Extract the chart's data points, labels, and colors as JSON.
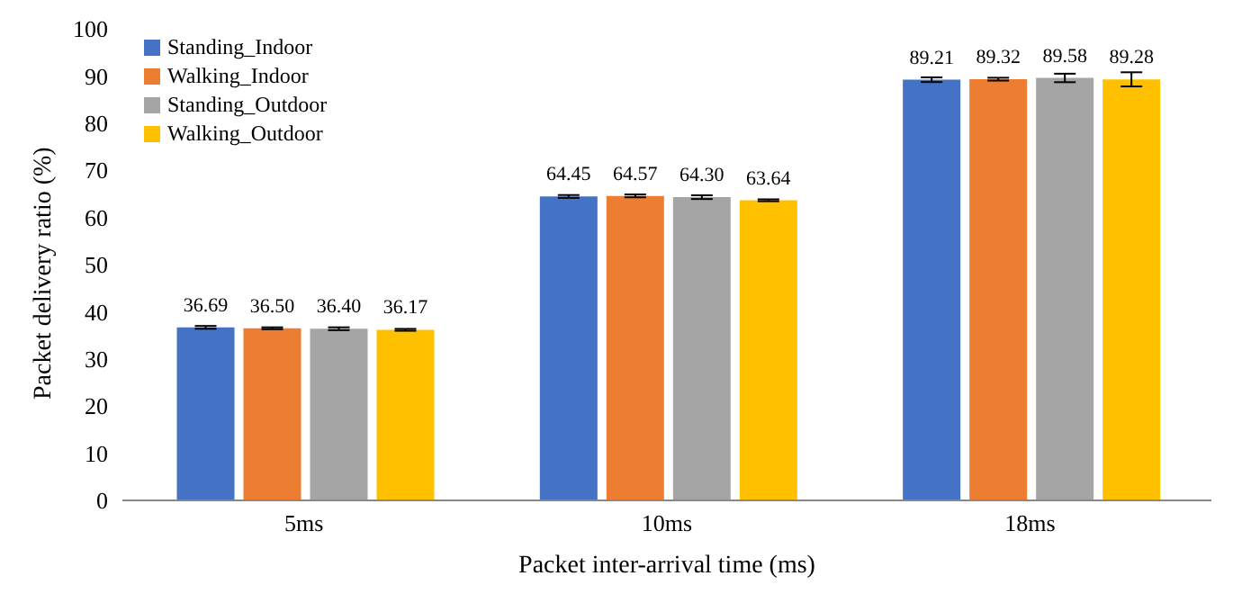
{
  "chart_data": {
    "type": "bar",
    "xlabel": "Packet inter-arrival time (ms)",
    "ylabel": "Packet delivery ratio (%)",
    "categories": [
      "5ms",
      "10ms",
      "18ms"
    ],
    "series": [
      {
        "name": "Standing_Indoor",
        "color": "#4472c4",
        "values": [
          36.69,
          64.45,
          89.21
        ],
        "errors": [
          0.3,
          0.3,
          0.5
        ],
        "value_labels": [
          "36.69",
          "64.45",
          "89.21"
        ]
      },
      {
        "name": "Walking_Indoor",
        "color": "#ed7d31",
        "values": [
          36.5,
          64.57,
          89.32
        ],
        "errors": [
          0.2,
          0.3,
          0.3
        ],
        "value_labels": [
          "36.50",
          "64.57",
          "89.32"
        ]
      },
      {
        "name": "Standing_Outdoor",
        "color": "#a5a5a5",
        "values": [
          36.4,
          64.3,
          89.58
        ],
        "errors": [
          0.3,
          0.4,
          0.9
        ],
        "value_labels": [
          "36.40",
          "64.30",
          "89.58"
        ]
      },
      {
        "name": "Walking_Outdoor",
        "color": "#ffc000",
        "values": [
          36.17,
          63.64,
          89.28
        ],
        "errors": [
          0.2,
          0.2,
          1.5
        ],
        "value_labels": [
          "36.17",
          "63.64",
          "89.28"
        ]
      }
    ],
    "ylim": [
      0,
      100
    ],
    "yticks": [
      0,
      10,
      20,
      30,
      40,
      50,
      60,
      70,
      80,
      90,
      100
    ],
    "legend": "top left",
    "grid": false
  }
}
